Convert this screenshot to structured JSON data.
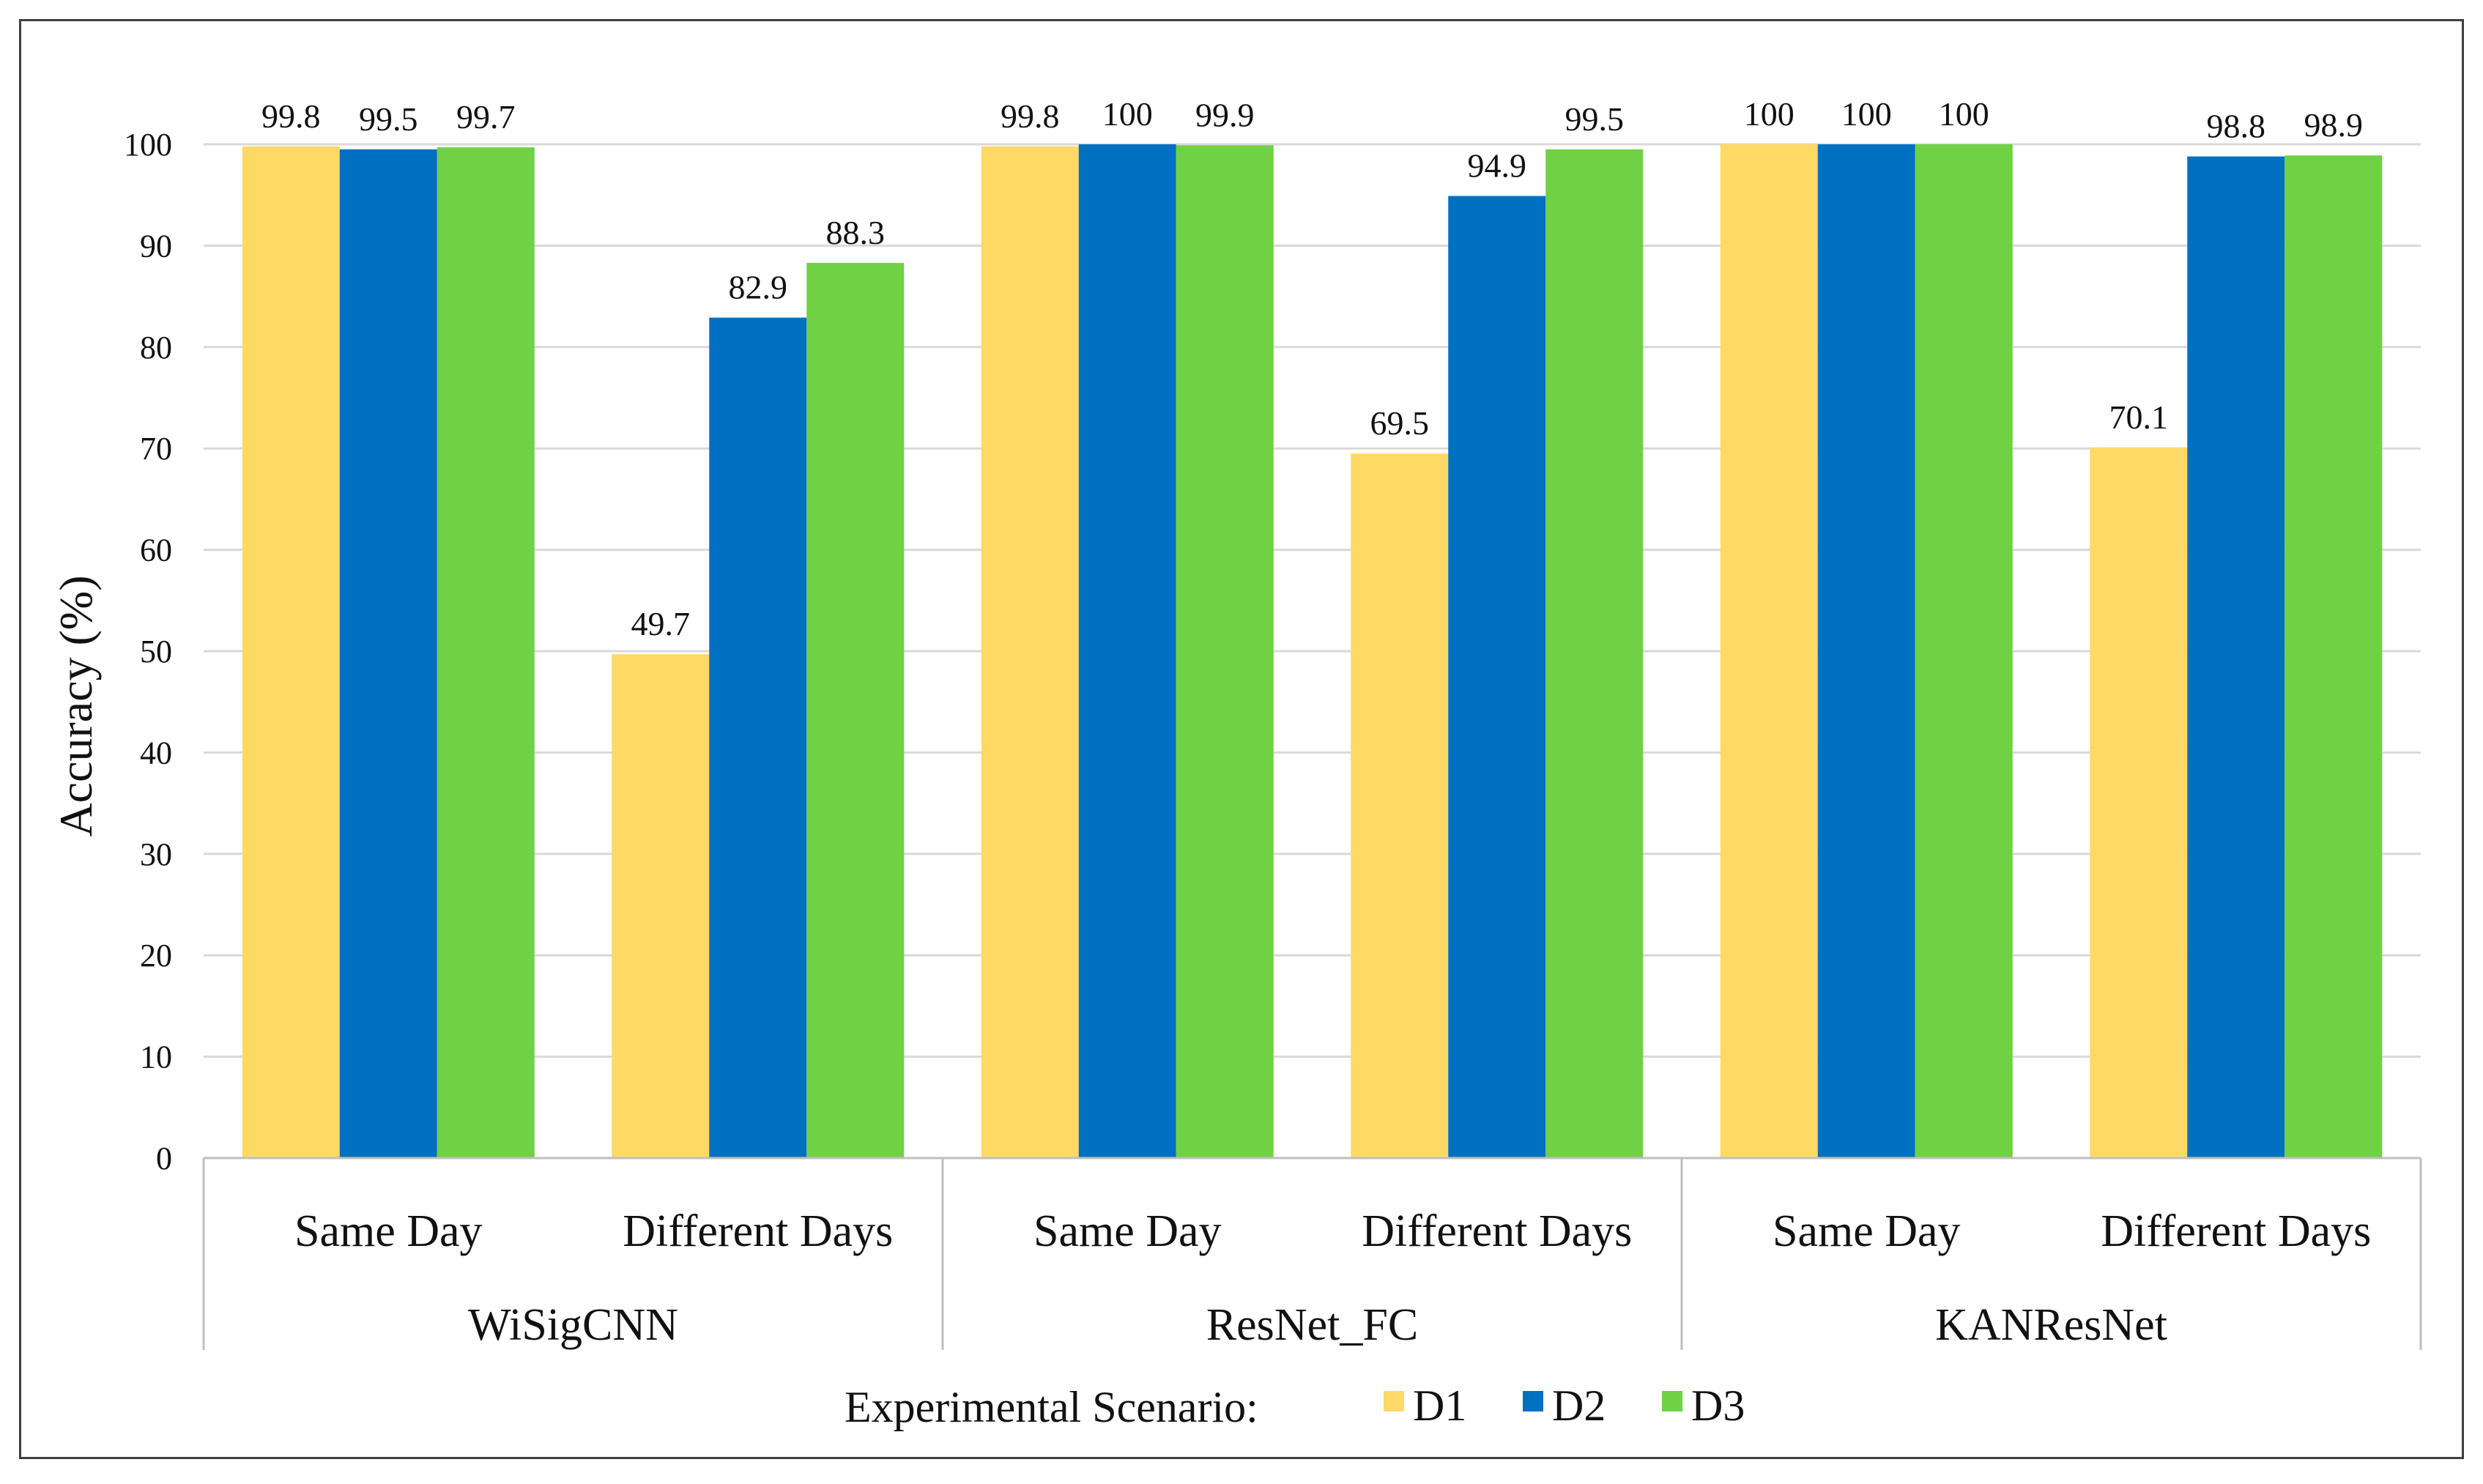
{
  "chart_data": {
    "type": "bar",
    "title": "",
    "xlabel": "",
    "ylabel": "Accuracy (%)",
    "ylim": [
      0,
      100
    ],
    "ytick_step": 10,
    "grid": true,
    "groups": [
      {
        "label": "WiSigCNN",
        "categories": [
          "Same Day",
          "Different Days"
        ]
      },
      {
        "label": "ResNet_FC",
        "categories": [
          "Same Day",
          "Different Days"
        ]
      },
      {
        "label": "KANResNet",
        "categories": [
          "Same Day",
          "Different Days"
        ]
      }
    ],
    "categories": [
      "WiSigCNN / Same Day",
      "WiSigCNN / Different Days",
      "ResNet_FC / Same Day",
      "ResNet_FC / Different Days",
      "KANResNet / Same Day",
      "KANResNet / Different Days"
    ],
    "series": [
      {
        "name": "D1",
        "color": "#FFD966",
        "values": [
          99.8,
          49.7,
          99.8,
          69.5,
          100,
          70.1
        ],
        "labels": [
          "99.8",
          "49.7",
          "99.8",
          "69.5",
          "100",
          "70.1"
        ]
      },
      {
        "name": "D2",
        "color": "#0070C0",
        "values": [
          99.5,
          82.9,
          100,
          94.9,
          100,
          98.8
        ],
        "labels": [
          "99.5",
          "82.9",
          "100",
          "94.9",
          "100",
          "98.8"
        ]
      },
      {
        "name": "D3",
        "color": "#6FD143",
        "values": [
          99.7,
          88.3,
          99.9,
          99.5,
          100,
          98.9
        ],
        "labels": [
          "99.7",
          "88.3",
          "99.9",
          "99.5",
          "100",
          "98.9"
        ]
      }
    ],
    "legend": {
      "title": "Experimental Scenario:",
      "placement": "bottom-center"
    }
  }
}
